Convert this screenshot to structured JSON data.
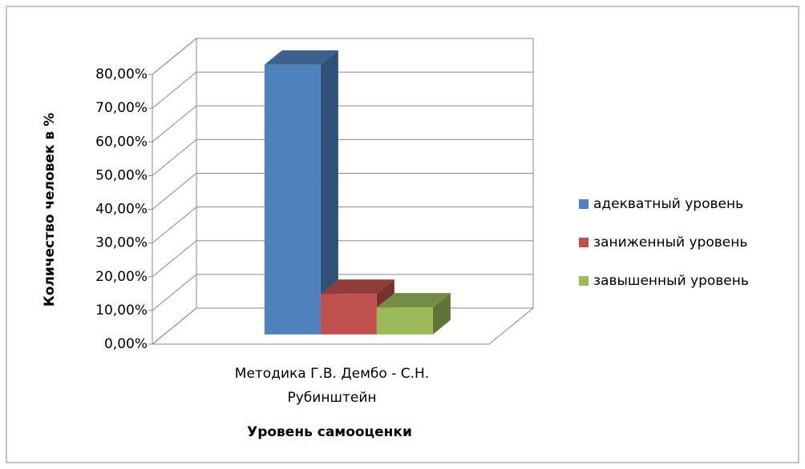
{
  "chart_data": {
    "type": "bar3d",
    "xlabel": "Уровень самооценки",
    "ylabel": "Количество человек в %",
    "categories": [
      "Методика Г.В. Дембо - С.Н. Рубинштейн"
    ],
    "series": [
      {
        "name": "адекватный уровень",
        "color": "#4f81bd",
        "values": [
          80
        ]
      },
      {
        "name": "заниженный уровень",
        "color": "#c0504d",
        "values": [
          12
        ]
      },
      {
        "name": "завышенный уровень",
        "color": "#9bbb59",
        "values": [
          8
        ]
      }
    ],
    "ylim": [
      0,
      80
    ],
    "yticks": [
      {
        "value": 0,
        "label": "0,00%"
      },
      {
        "value": 10,
        "label": "10,00%"
      },
      {
        "value": 20,
        "label": "20,00%"
      },
      {
        "value": 30,
        "label": "30,00%"
      },
      {
        "value": 40,
        "label": "40,00%"
      },
      {
        "value": 50,
        "label": "50,00%"
      },
      {
        "value": 60,
        "label": "60,00%"
      },
      {
        "value": 70,
        "label": "70,00%"
      },
      {
        "value": 80,
        "label": "80,00%"
      }
    ],
    "grid": true,
    "legend": "right"
  }
}
